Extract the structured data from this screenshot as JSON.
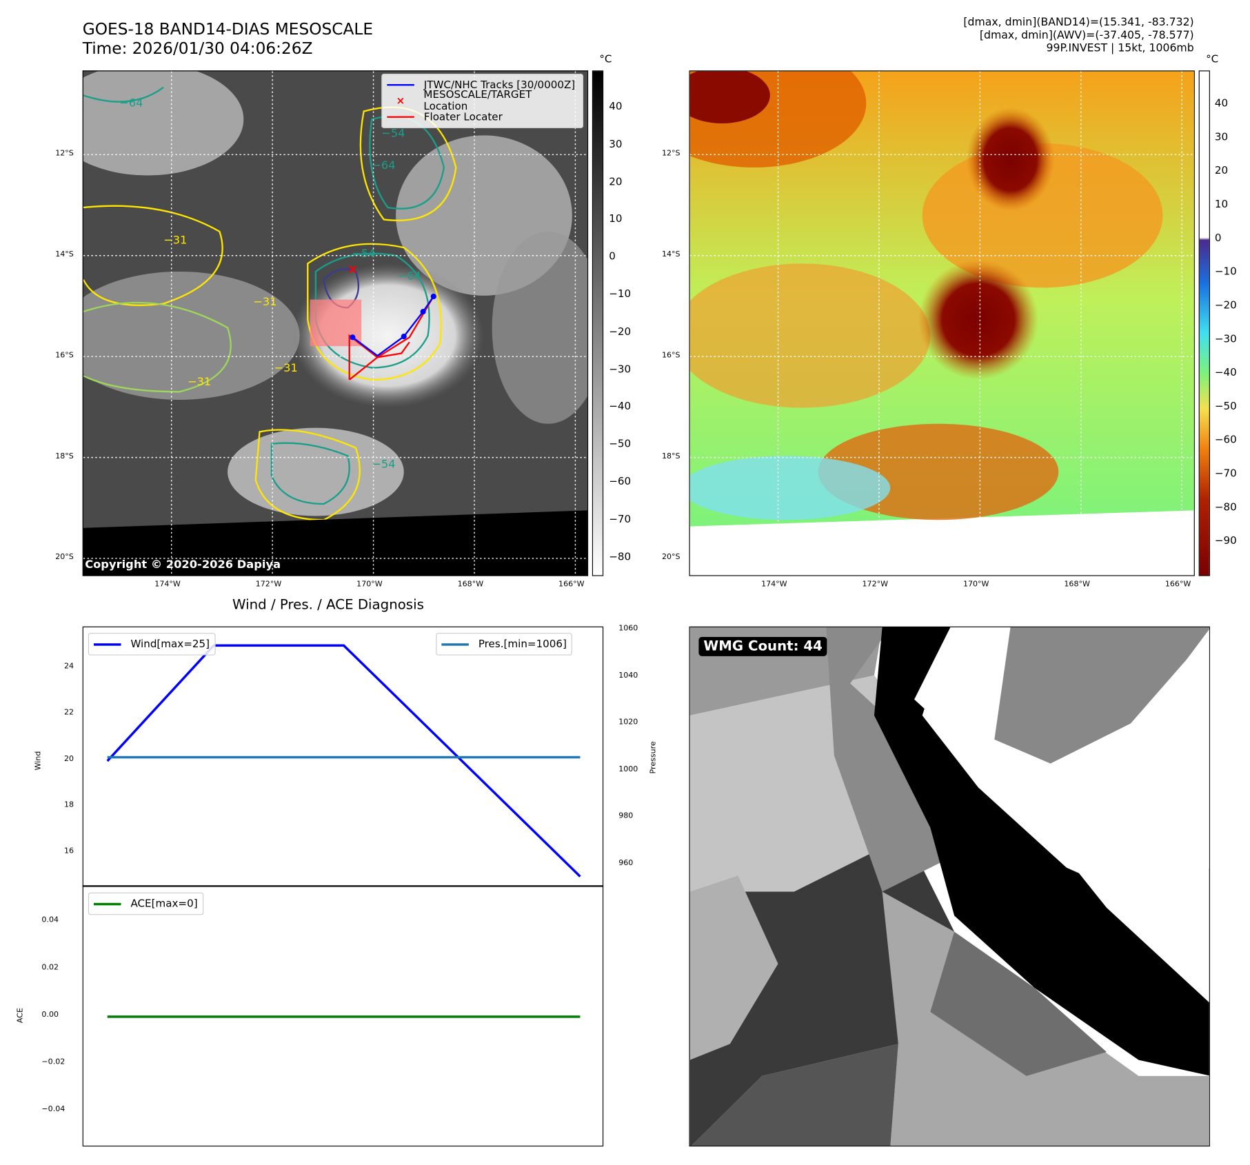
{
  "header": {
    "title_line1": "GOES-18 BAND14-DIAS MESOSCALE",
    "title_line2": "Time: 2026/01/30 04:06:26Z",
    "info_line1": "[dmax, dmin](BAND14)=(15.341, -83.732)",
    "info_line2": "[dmax, dmin](AWV)=(-37.405, -78.577)",
    "info_line3": "99P.INVEST | 15kt, 1006mb"
  },
  "maps": {
    "lon_ticks": [
      "174°W",
      "172°W",
      "170°W",
      "168°W",
      "166°W"
    ],
    "lat_ticks": [
      "12°S",
      "14°S",
      "16°S",
      "18°S",
      "20°S"
    ],
    "colorbar1_unit": "°C",
    "colorbar1_ticks": [
      "40",
      "30",
      "20",
      "10",
      "0",
      "−10",
      "−20",
      "−30",
      "−40",
      "−50",
      "−60",
      "−70",
      "−80"
    ],
    "colorbar2_unit": "°C",
    "colorbar2_ticks": [
      "40",
      "30",
      "20",
      "10",
      "0",
      "−10",
      "−20",
      "−30",
      "−40",
      "−50",
      "−60",
      "−70",
      "−80",
      "−90"
    ],
    "legend": [
      "JTWC/NHC Tracks [30/0000Z]",
      "MESOSCALE/TARGET Location",
      "Floater Locater"
    ],
    "contour_labels": [
      "−64",
      "−54",
      "−64",
      "−31",
      "−54",
      "−64",
      "−31",
      "−31",
      "−31",
      "−54"
    ],
    "copyright": "Copyright © 2020-2026 Dapiya",
    "colors": {
      "track": "#0000ff",
      "target": "#ff0000",
      "floater": "#ff0000"
    }
  },
  "wmg": {
    "label": "WMG Count: 44"
  },
  "chart_data": [
    {
      "type": "line",
      "title": "Wind / Pres. / ACE Diagnosis",
      "ylabel": "Wind",
      "y2label": "Pressure",
      "x": [
        0,
        2.25,
        5,
        10
      ],
      "series": [
        {
          "name": "Wind[max=25]",
          "axis": "left",
          "values": [
            20,
            25,
            25,
            15
          ],
          "color": "#0000ff"
        },
        {
          "name": "Pres.[min=1006]",
          "axis": "right",
          "values": [
            1006,
            1006,
            1006,
            1006
          ],
          "color": "#1f77b4"
        }
      ],
      "ylim": [
        15,
        25.3
      ],
      "y2lim": [
        956,
        1060
      ],
      "yticks": [
        "16",
        "18",
        "20",
        "22",
        "24"
      ],
      "y2ticks": [
        "960",
        "980",
        "1000",
        "1020",
        "1040",
        "1060"
      ],
      "legend": [
        "top-left",
        "top-right"
      ]
    },
    {
      "type": "line",
      "ylabel": "ACE",
      "x": [
        0,
        2.25,
        5,
        10
      ],
      "series": [
        {
          "name": "ACE[max=0]",
          "values": [
            0,
            0,
            0,
            0
          ],
          "color": "#008000"
        }
      ],
      "ylim": [
        -0.055,
        0.055
      ],
      "yticks": [
        "0.04",
        "0.02",
        "0.00",
        "−0.02",
        "−0.04"
      ],
      "legend": "top-left"
    }
  ]
}
